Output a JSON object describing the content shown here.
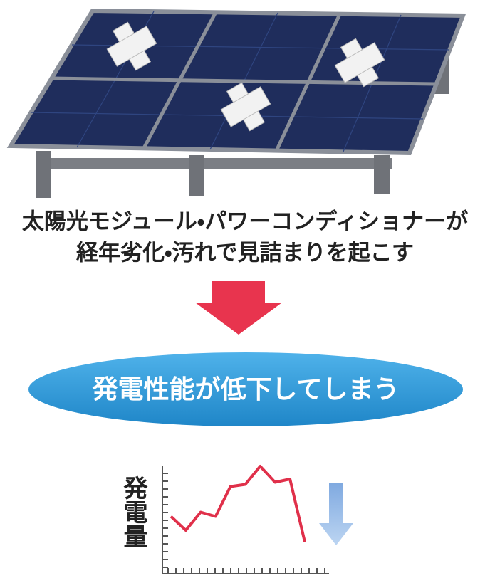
{
  "heading": {
    "lines": [
      "太陽光モジュール・パワーコンディショナーが",
      "経年劣化・汚れで見詰まりを起こす"
    ]
  },
  "result": "発電性能が低下してしまう",
  "graph": {
    "label": "発電量",
    "values": [
      5.3,
      4.0,
      5.7,
      5.3,
      8.1,
      8.3,
      10,
      8.5,
      8.8,
      2.9
    ],
    "color": "#e0304a"
  }
}
